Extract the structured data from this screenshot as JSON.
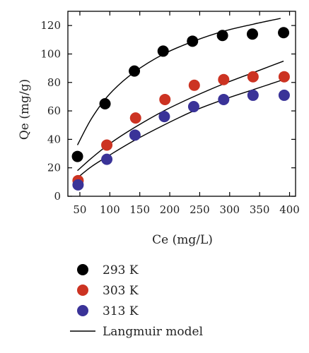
{
  "chart_data": {
    "type": "scatter",
    "xlabel": "Ce (mg/L)",
    "ylabel": "Qe (mg/g)",
    "xlim": [
      30,
      410
    ],
    "ylim": [
      0,
      130
    ],
    "xticks": [
      50,
      100,
      150,
      200,
      250,
      300,
      350,
      400
    ],
    "yticks": [
      0,
      20,
      40,
      60,
      80,
      100,
      120
    ],
    "grid": false,
    "legend_position": "bottom",
    "series": [
      {
        "name": "293 K",
        "color": "#000000",
        "x": [
          46,
          92,
          141,
          189,
          238,
          288,
          338,
          390
        ],
        "y": [
          28,
          65,
          88,
          102,
          109,
          113,
          114,
          115
        ]
      },
      {
        "name": "303 K",
        "color": "#cc3322",
        "x": [
          47,
          95,
          143,
          192,
          241,
          290,
          339,
          391
        ],
        "y": [
          11,
          36,
          55,
          68,
          78,
          82,
          84,
          84
        ]
      },
      {
        "name": "313 K",
        "color": "#3a3398",
        "x": [
          47,
          95,
          142,
          191,
          240,
          290,
          339,
          391
        ],
        "y": [
          8,
          26,
          43,
          56,
          63,
          68,
          71,
          71
        ]
      }
    ],
    "model_legend": "Langmuir model",
    "model_curves": [
      {
        "x": [
          46,
          70,
          100,
          140,
          190,
          240,
          290,
          340,
          385
        ],
        "y": [
          36,
          55,
          72,
          87,
          100,
          109,
          116,
          121,
          125
        ]
      },
      {
        "x": [
          46,
          70,
          100,
          140,
          190,
          240,
          290,
          340,
          390
        ],
        "y": [
          18,
          27,
          37,
          48,
          60,
          70,
          79,
          87,
          95
        ]
      },
      {
        "x": [
          46,
          70,
          100,
          140,
          190,
          240,
          290,
          340,
          390
        ],
        "y": [
          13,
          21,
          29,
          39,
          50,
          60,
          68,
          75,
          82
        ]
      }
    ]
  }
}
